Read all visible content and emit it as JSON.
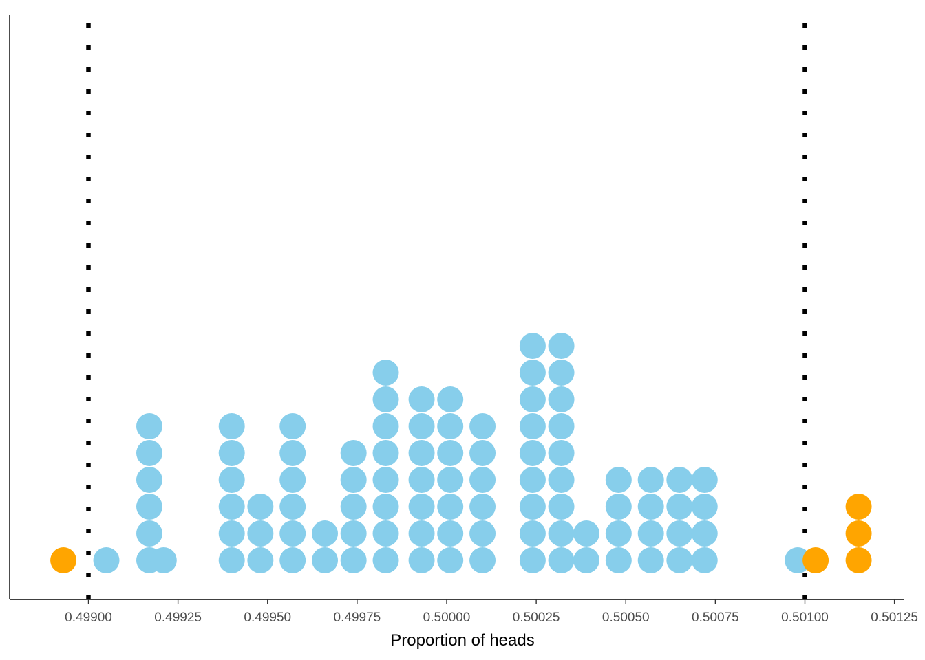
{
  "chart_data": {
    "type": "dotplot",
    "title": "",
    "xlabel": "Proportion of heads",
    "ylabel": "",
    "xlim": [
      0.49883,
      0.50128
    ],
    "x_ticks": [
      0.499,
      0.49925,
      0.4995,
      0.49975,
      0.5,
      0.50025,
      0.5005,
      0.50075,
      0.501,
      0.50125
    ],
    "x_tick_labels": [
      "0.49900",
      "0.49925",
      "0.49950",
      "0.49975",
      "0.50000",
      "0.50025",
      "0.50050",
      "0.50075",
      "0.50100",
      "0.50125"
    ],
    "reference_lines": [
      0.499,
      0.501
    ],
    "colors": {
      "inside": "#87ceeb",
      "outside": "#ffa500",
      "reference": "#000000"
    },
    "stacks": [
      {
        "x": 0.49893,
        "count": 1,
        "group": "outside"
      },
      {
        "x": 0.49905,
        "count": 1,
        "group": "inside"
      },
      {
        "x": 0.49917,
        "count": 6,
        "group": "inside"
      },
      {
        "x": 0.49921,
        "count": 1,
        "group": "inside"
      },
      {
        "x": 0.4994,
        "count": 6,
        "group": "inside"
      },
      {
        "x": 0.49948,
        "count": 3,
        "group": "inside"
      },
      {
        "x": 0.49957,
        "count": 6,
        "group": "inside"
      },
      {
        "x": 0.49966,
        "count": 2,
        "group": "inside"
      },
      {
        "x": 0.49974,
        "count": 5,
        "group": "inside"
      },
      {
        "x": 0.49983,
        "count": 8,
        "group": "inside"
      },
      {
        "x": 0.49993,
        "count": 7,
        "group": "inside"
      },
      {
        "x": 0.50001,
        "count": 7,
        "group": "inside"
      },
      {
        "x": 0.5001,
        "count": 6,
        "group": "inside"
      },
      {
        "x": 0.50024,
        "count": 9,
        "group": "inside"
      },
      {
        "x": 0.50032,
        "count": 9,
        "group": "inside"
      },
      {
        "x": 0.50039,
        "count": 2,
        "group": "inside"
      },
      {
        "x": 0.50048,
        "count": 4,
        "group": "inside"
      },
      {
        "x": 0.50057,
        "count": 4,
        "group": "inside"
      },
      {
        "x": 0.50065,
        "count": 4,
        "group": "inside"
      },
      {
        "x": 0.50072,
        "count": 4,
        "group": "inside"
      },
      {
        "x": 0.50098,
        "count": 1,
        "group": "inside"
      },
      {
        "x": 0.50103,
        "count": 1,
        "group": "outside"
      },
      {
        "x": 0.50115,
        "count": 3,
        "group": "outside"
      }
    ]
  }
}
